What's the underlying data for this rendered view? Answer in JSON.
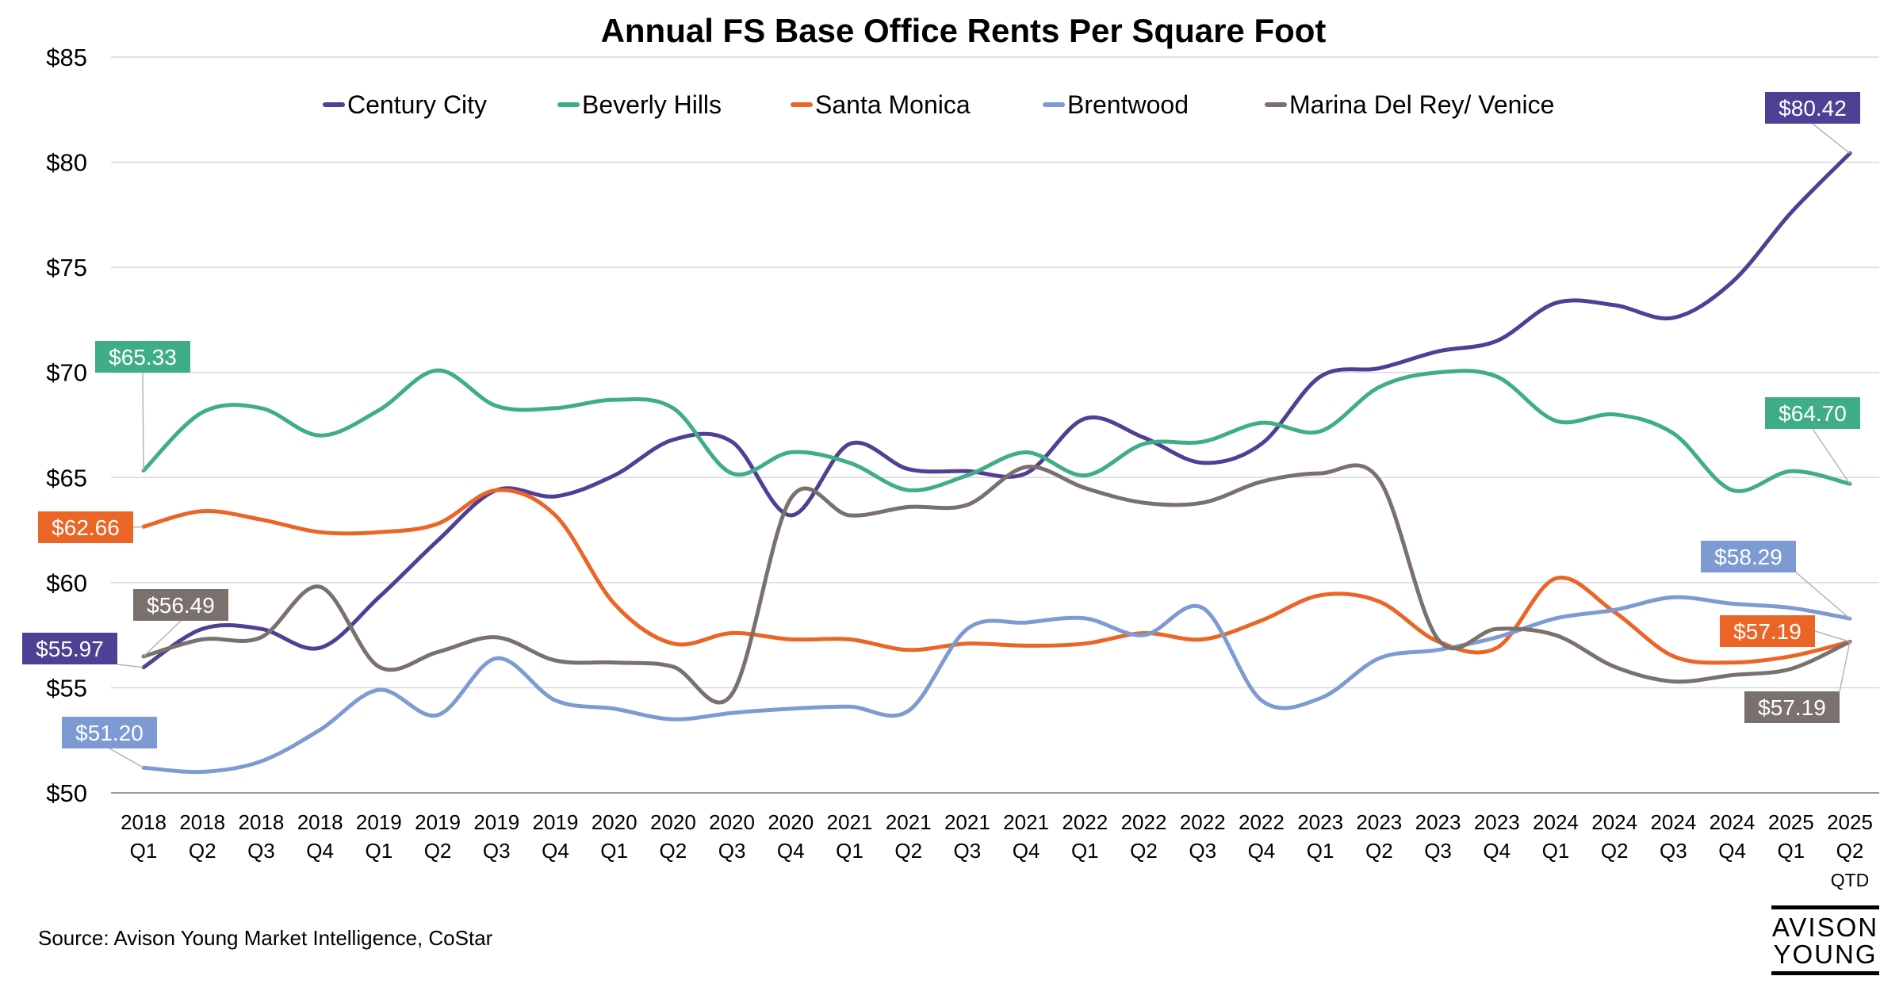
{
  "chart_data": {
    "type": "line",
    "title": "Annual FS Base Office Rents Per Square Foot",
    "xlabel": "",
    "ylabel": "",
    "ylim": [
      50,
      85
    ],
    "yticks": [
      "$50",
      "$55",
      "$60",
      "$65",
      "$70",
      "$75",
      "$80",
      "$85"
    ],
    "grid": true,
    "legend": "top",
    "categories": [
      [
        "2018",
        "Q1"
      ],
      [
        "2018",
        "Q2"
      ],
      [
        "2018",
        "Q3"
      ],
      [
        "2018",
        "Q4"
      ],
      [
        "2019",
        "Q1"
      ],
      [
        "2019",
        "Q2"
      ],
      [
        "2019",
        "Q3"
      ],
      [
        "2019",
        "Q4"
      ],
      [
        "2020",
        "Q1"
      ],
      [
        "2020",
        "Q2"
      ],
      [
        "2020",
        "Q3"
      ],
      [
        "2020",
        "Q4"
      ],
      [
        "2021",
        "Q1"
      ],
      [
        "2021",
        "Q2"
      ],
      [
        "2021",
        "Q3"
      ],
      [
        "2021",
        "Q4"
      ],
      [
        "2022",
        "Q1"
      ],
      [
        "2022",
        "Q2"
      ],
      [
        "2022",
        "Q3"
      ],
      [
        "2022",
        "Q4"
      ],
      [
        "2023",
        "Q1"
      ],
      [
        "2023",
        "Q2"
      ],
      [
        "2023",
        "Q3"
      ],
      [
        "2023",
        "Q4"
      ],
      [
        "2024",
        "Q1"
      ],
      [
        "2024",
        "Q2"
      ],
      [
        "2024",
        "Q3"
      ],
      [
        "2024",
        "Q4"
      ],
      [
        "2025",
        "Q1"
      ],
      [
        "2025",
        "Q2",
        "QTD"
      ]
    ],
    "series": [
      {
        "name": "Century City",
        "color": "#4F3F95",
        "values": [
          55.97,
          57.8,
          57.8,
          56.9,
          59.3,
          62.0,
          64.4,
          64.1,
          65.1,
          66.8,
          66.7,
          63.2,
          66.6,
          65.4,
          65.3,
          65.2,
          67.8,
          66.9,
          65.7,
          66.6,
          69.8,
          70.2,
          71.0,
          71.5,
          73.3,
          73.2,
          72.6,
          74.3,
          77.6,
          80.42
        ],
        "labels": [
          {
            "index": 0,
            "text": "$55.97"
          },
          {
            "index": 29,
            "text": "$80.42"
          }
        ]
      },
      {
        "name": "Beverly Hills",
        "color": "#3FAE87",
        "values": [
          65.33,
          68.1,
          68.3,
          67.0,
          68.2,
          70.1,
          68.4,
          68.3,
          68.7,
          68.3,
          65.2,
          66.2,
          65.7,
          64.4,
          65.1,
          66.2,
          65.1,
          66.6,
          66.7,
          67.6,
          67.2,
          69.3,
          70.0,
          69.8,
          67.7,
          68.0,
          67.1,
          64.4,
          65.3,
          64.7
        ],
        "labels": [
          {
            "index": 0,
            "text": "$65.33"
          },
          {
            "index": 29,
            "text": "$64.70"
          }
        ]
      },
      {
        "name": "Santa Monica",
        "color": "#EB6527",
        "values": [
          62.66,
          63.4,
          63.0,
          62.4,
          62.4,
          62.8,
          64.4,
          63.2,
          59.0,
          57.1,
          57.6,
          57.3,
          57.3,
          56.8,
          57.1,
          57.0,
          57.1,
          57.6,
          57.3,
          58.2,
          59.4,
          59.1,
          57.2,
          56.9,
          60.2,
          58.6,
          56.5,
          56.2,
          56.5,
          57.19
        ],
        "labels": [
          {
            "index": 0,
            "text": "$62.66"
          },
          {
            "index": 29,
            "text": "$57.19"
          }
        ]
      },
      {
        "name": "Brentwood",
        "color": "#7D9BD2",
        "values": [
          51.2,
          51.0,
          51.5,
          53.0,
          54.9,
          53.7,
          56.4,
          54.4,
          54.0,
          53.5,
          53.8,
          54.0,
          54.1,
          53.9,
          57.8,
          58.1,
          58.3,
          57.5,
          58.8,
          54.4,
          54.5,
          56.4,
          56.8,
          57.4,
          58.3,
          58.7,
          59.3,
          59.0,
          58.8,
          58.29
        ],
        "labels": [
          {
            "index": 0,
            "text": "$51.20"
          },
          {
            "index": 29,
            "text": "$58.29"
          }
        ]
      },
      {
        "name": "Marina Del Rey/ Venice",
        "color": "#7A716D",
        "values": [
          56.49,
          57.3,
          57.4,
          59.8,
          56.0,
          56.7,
          57.4,
          56.3,
          56.2,
          56.0,
          54.7,
          64.0,
          63.2,
          63.6,
          63.7,
          65.5,
          64.5,
          63.8,
          63.8,
          64.8,
          65.2,
          64.9,
          57.3,
          57.8,
          57.5,
          56.0,
          55.3,
          55.6,
          55.9,
          57.19
        ],
        "labels": [
          {
            "index": 0,
            "text": "$56.49"
          },
          {
            "index": 29,
            "text": "$57.19"
          }
        ]
      }
    ]
  },
  "source": "Source: Avison Young Market Intelligence, CoStar",
  "logo": {
    "line1": "AVISON",
    "line2": "YOUNG"
  }
}
